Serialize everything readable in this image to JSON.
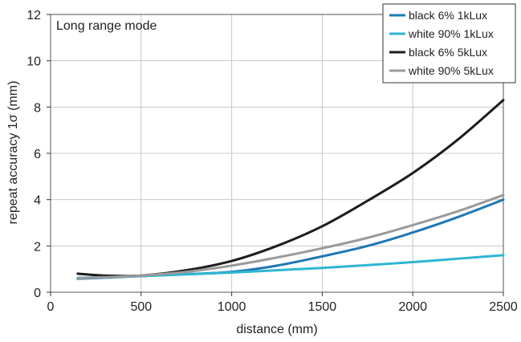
{
  "chart_data": {
    "type": "line",
    "title": "",
    "annotation": "Long range mode",
    "xlabel": "distance (mm)",
    "ylabel": "repeat accuracy 1σ (mm)",
    "xlim": [
      0,
      2500
    ],
    "ylim": [
      0,
      12
    ],
    "xticks": [
      0,
      500,
      1000,
      1500,
      2000,
      2500
    ],
    "yticks": [
      0,
      2,
      4,
      6,
      8,
      10,
      12
    ],
    "grid": true,
    "legend_position": "top-right",
    "series": [
      {
        "name": "black 6% 1kLux",
        "color": "#1f77b4",
        "x": [
          150,
          300,
          500,
          750,
          1000,
          1250,
          1500,
          1750,
          2000,
          2250,
          2500
        ],
        "y": [
          0.58,
          0.63,
          0.7,
          0.78,
          0.88,
          1.15,
          1.55,
          2.0,
          2.58,
          3.25,
          4.0
        ]
      },
      {
        "name": "white 90% 1kLux",
        "color": "#2fb6d2",
        "x": [
          150,
          300,
          500,
          750,
          1000,
          1250,
          1500,
          1750,
          2000,
          2250,
          2500
        ],
        "y": [
          0.62,
          0.65,
          0.7,
          0.77,
          0.85,
          0.95,
          1.05,
          1.17,
          1.3,
          1.45,
          1.6
        ]
      },
      {
        "name": "black 6% 5kLux",
        "color": "#1c1c1c",
        "x": [
          150,
          300,
          500,
          750,
          1000,
          1250,
          1500,
          1750,
          2000,
          2250,
          2500
        ],
        "y": [
          0.8,
          0.72,
          0.72,
          0.95,
          1.35,
          2.0,
          2.85,
          3.95,
          5.15,
          6.6,
          8.3
        ]
      },
      {
        "name": "white 90% 5kLux",
        "color": "#9a9a9a",
        "x": [
          150,
          300,
          500,
          750,
          1000,
          1250,
          1500,
          1750,
          2000,
          2250,
          2500
        ],
        "y": [
          0.6,
          0.65,
          0.72,
          0.88,
          1.15,
          1.5,
          1.9,
          2.35,
          2.9,
          3.5,
          4.2
        ]
      }
    ]
  }
}
